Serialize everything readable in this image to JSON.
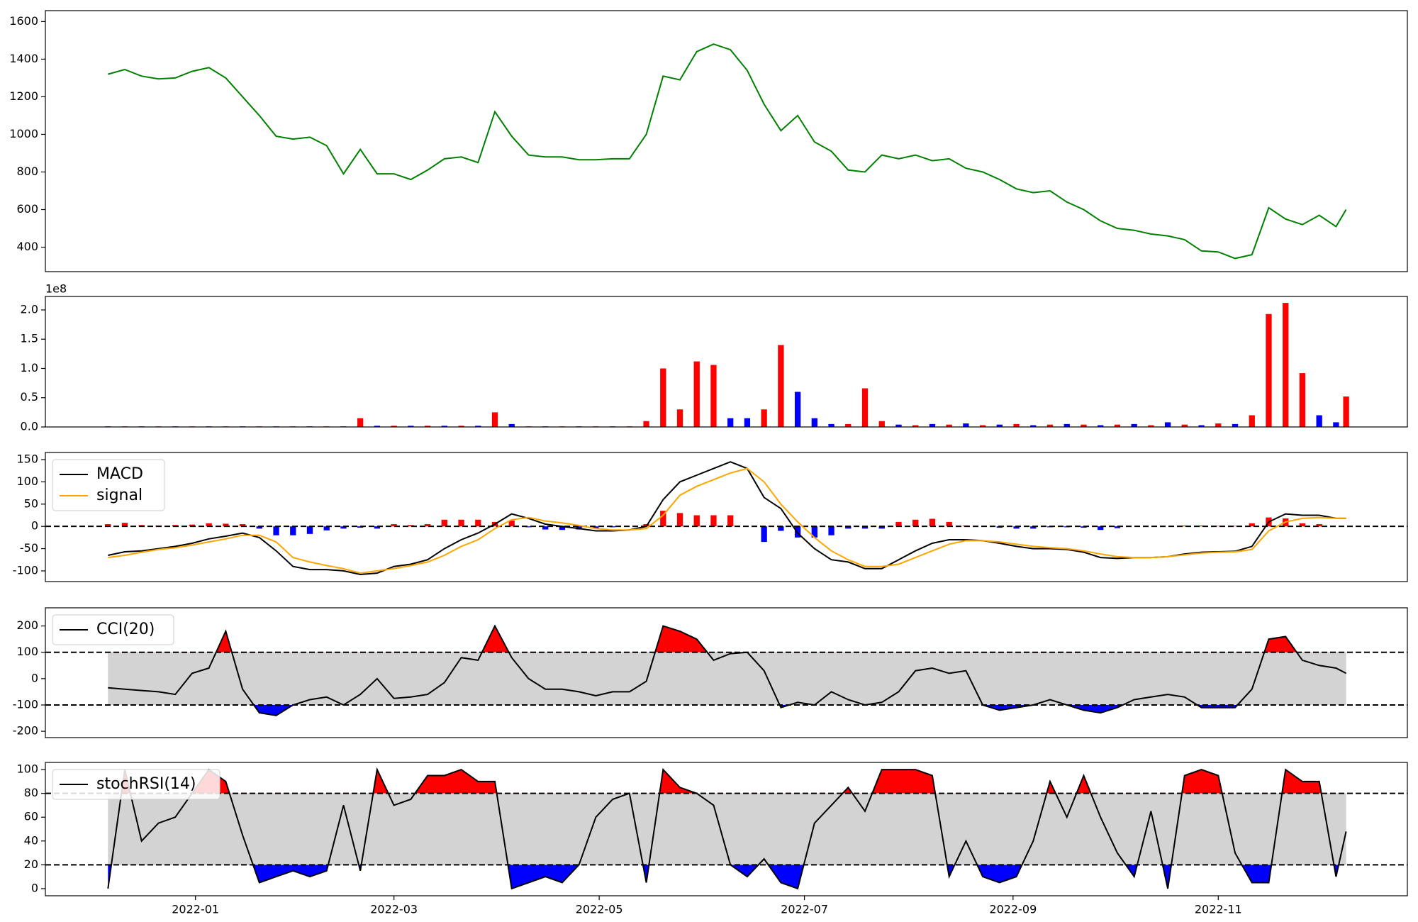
{
  "chart_data": [
    {
      "type": "line",
      "color": "#008000",
      "x": [
        -26,
        -21,
        -16,
        -11,
        -6,
        -1,
        4,
        9,
        14,
        19,
        24,
        29,
        34,
        39,
        44,
        49,
        54,
        59,
        64,
        69,
        74,
        79,
        84,
        89,
        94,
        99,
        104,
        109,
        114,
        119,
        124,
        129,
        134,
        139,
        144,
        149,
        154,
        159,
        164,
        169,
        174,
        179,
        184,
        189,
        194,
        199,
        204,
        209,
        214,
        219,
        224,
        229,
        234,
        239,
        244,
        249,
        254,
        259,
        264,
        269,
        274,
        279,
        284,
        289,
        294,
        299,
        304,
        309,
        314,
        319,
        324,
        329,
        334,
        339,
        342
      ],
      "values": [
        1320,
        1345,
        1310,
        1295,
        1300,
        1335,
        1355,
        1300,
        1200,
        1100,
        990,
        975,
        985,
        940,
        790,
        920,
        790,
        790,
        760,
        810,
        870,
        880,
        850,
        1120,
        990,
        890,
        880,
        880,
        865,
        865,
        870,
        870,
        1000,
        1310,
        1290,
        1440,
        1480,
        1450,
        1340,
        1160,
        1020,
        1100,
        960,
        910,
        810,
        800,
        890,
        870,
        890,
        860,
        870,
        820,
        800,
        760,
        710,
        690,
        700,
        640,
        600,
        540,
        500,
        490,
        470,
        460,
        440,
        380,
        375,
        340,
        360,
        610,
        550,
        520,
        570,
        510,
        600
      ],
      "xlim": [
        -44.6,
        360.2
      ],
      "ylim": [
        270,
        1658
      ],
      "yticks": [
        400,
        600,
        800,
        1000,
        1200,
        1400,
        1600
      ]
    },
    {
      "type": "bar",
      "y_offset_label": "1e8",
      "x": [
        -26,
        -21,
        -16,
        -11,
        -6,
        -1,
        4,
        9,
        14,
        19,
        24,
        29,
        34,
        39,
        44,
        49,
        54,
        59,
        64,
        69,
        74,
        79,
        84,
        89,
        94,
        99,
        104,
        109,
        114,
        119,
        124,
        129,
        134,
        139,
        144,
        149,
        154,
        159,
        164,
        169,
        174,
        179,
        184,
        189,
        194,
        199,
        204,
        209,
        214,
        219,
        224,
        229,
        234,
        239,
        244,
        249,
        254,
        259,
        264,
        269,
        274,
        279,
        284,
        289,
        294,
        299,
        304,
        309,
        314,
        319,
        324,
        329,
        334,
        339,
        342
      ],
      "values": [
        0.01,
        0.01,
        0.01,
        0.01,
        0.01,
        0.01,
        0.01,
        0.01,
        0.01,
        0.01,
        0.01,
        0.01,
        0.01,
        0.01,
        0.01,
        0.15,
        0.02,
        0.02,
        0.02,
        0.02,
        0.02,
        0.02,
        0.02,
        0.25,
        0.05,
        0.01,
        0.01,
        0.01,
        0.01,
        0.01,
        0.01,
        0.01,
        0.1,
        1.0,
        0.3,
        1.12,
        1.06,
        0.15,
        0.15,
        0.3,
        1.4,
        0.6,
        0.15,
        0.05,
        0.05,
        0.66,
        0.1,
        0.04,
        0.03,
        0.05,
        0.04,
        0.06,
        0.03,
        0.04,
        0.05,
        0.03,
        0.04,
        0.05,
        0.04,
        0.03,
        0.04,
        0.05,
        0.03,
        0.08,
        0.04,
        0.03,
        0.06,
        0.05,
        0.2,
        1.93,
        2.12,
        0.92,
        0.2,
        0.08,
        0.52
      ],
      "colors": [
        "blue",
        "red",
        "blue",
        "red",
        "blue",
        "red",
        "blue",
        "red",
        "blue",
        "red",
        "blue",
        "red",
        "blue",
        "red",
        "blue",
        "red",
        "blue",
        "red",
        "blue",
        "red",
        "blue",
        "red",
        "blue",
        "red",
        "blue",
        "red",
        "blue",
        "red",
        "blue",
        "red",
        "blue",
        "red",
        "red",
        "red",
        "red",
        "red",
        "red",
        "blue",
        "blue",
        "red",
        "red",
        "blue",
        "blue",
        "blue",
        "red",
        "red",
        "red",
        "blue",
        "red",
        "blue",
        "red",
        "blue",
        "red",
        "blue",
        "red",
        "blue",
        "red",
        "blue",
        "red",
        "blue",
        "red",
        "blue",
        "red",
        "blue",
        "red",
        "blue",
        "red",
        "blue",
        "red",
        "red",
        "red",
        "red",
        "blue",
        "blue",
        "red"
      ],
      "xlim": [
        -44.6,
        360.2
      ],
      "ylim": [
        0,
        2.23
      ],
      "yticks": [
        {
          "value": 0,
          "label": "0.0"
        },
        {
          "value": 0.5,
          "label": "0.5"
        },
        {
          "value": 1,
          "label": "1.0"
        },
        {
          "value": 1.5,
          "label": "1.5"
        },
        {
          "value": 2,
          "label": "2.0"
        }
      ]
    },
    {
      "type": "macd",
      "legend": "upper left",
      "hline": 0,
      "pos_color": "#ff0000",
      "neg_color": "#0000ff",
      "x": [
        -26,
        -21,
        -16,
        -11,
        -6,
        -1,
        4,
        9,
        14,
        19,
        24,
        29,
        34,
        39,
        44,
        49,
        54,
        59,
        64,
        69,
        74,
        79,
        84,
        89,
        94,
        99,
        104,
        109,
        114,
        119,
        124,
        129,
        134,
        139,
        144,
        149,
        154,
        159,
        164,
        169,
        174,
        179,
        184,
        189,
        194,
        199,
        204,
        209,
        214,
        219,
        224,
        229,
        234,
        239,
        244,
        249,
        254,
        259,
        264,
        269,
        274,
        279,
        284,
        289,
        294,
        299,
        304,
        309,
        314,
        319,
        324,
        329,
        334,
        339,
        342
      ],
      "series": [
        {
          "name": "MACD",
          "color": "#000000",
          "values": [
            -65,
            -57,
            -55,
            -50,
            -45,
            -38,
            -28,
            -22,
            -15,
            -25,
            -55,
            -90,
            -97,
            -97,
            -100,
            -108,
            -105,
            -90,
            -85,
            -75,
            -50,
            -30,
            -15,
            5,
            28,
            18,
            5,
            0,
            -5,
            -10,
            -10,
            -8,
            0,
            60,
            100,
            115,
            130,
            145,
            130,
            65,
            40,
            -15,
            -50,
            -75,
            -80,
            -95,
            -95,
            -75,
            -55,
            -38,
            -30,
            -30,
            -32,
            -38,
            -45,
            -50,
            -50,
            -52,
            -58,
            -70,
            -72,
            -70,
            -70,
            -68,
            -62,
            -58,
            -57,
            -56,
            -45,
            10,
            28,
            25,
            25,
            18,
            18
          ]
        },
        {
          "name": "signal",
          "color": "#ffa500",
          "values": [
            -70,
            -65,
            -58,
            -52,
            -48,
            -42,
            -35,
            -28,
            -20,
            -20,
            -35,
            -70,
            -80,
            -88,
            -95,
            -105,
            -100,
            -95,
            -88,
            -80,
            -65,
            -45,
            -30,
            -5,
            15,
            20,
            12,
            8,
            2,
            -5,
            -8,
            -8,
            -5,
            25,
            70,
            90,
            105,
            120,
            130,
            100,
            50,
            10,
            -25,
            -55,
            -75,
            -90,
            -90,
            -85,
            -70,
            -55,
            -40,
            -32,
            -32,
            -35,
            -40,
            -45,
            -48,
            -50,
            -55,
            -62,
            -68,
            -70,
            -70,
            -68,
            -64,
            -60,
            -58,
            -57,
            -52,
            -10,
            10,
            18,
            20,
            18,
            18
          ]
        }
      ],
      "histogram": [
        5,
        8,
        3,
        2,
        3,
        4,
        7,
        6,
        5,
        -5,
        -20,
        -20,
        -17,
        -9,
        -5,
        -3,
        -5,
        5,
        3,
        5,
        15,
        15,
        15,
        10,
        13,
        -2,
        -7,
        -8,
        -7,
        -5,
        -2,
        0,
        5,
        35,
        30,
        25,
        25,
        25,
        0,
        -35,
        -10,
        -25,
        -25,
        -20,
        -5,
        -5,
        -5,
        10,
        15,
        17,
        10,
        2,
        0,
        -3,
        -5,
        -5,
        -2,
        -2,
        -3,
        -8,
        -4,
        0,
        0,
        0,
        2,
        2,
        1,
        1,
        7,
        20,
        18,
        7,
        5,
        0,
        0
      ],
      "xlim": [
        -44.6,
        360.2
      ],
      "ylim": [
        -124,
        166
      ],
      "yticks": [
        -100,
        -50,
        0,
        50,
        100,
        150
      ]
    },
    {
      "type": "oscillator",
      "legend": "upper left",
      "bands": [
        -100,
        100
      ],
      "band_color": "#d3d3d3",
      "upper_color": "#ff0000",
      "lower_color": "#0000ff",
      "x": [
        -26,
        -21,
        -16,
        -11,
        -6,
        -1,
        4,
        9,
        14,
        19,
        24,
        29,
        34,
        39,
        44,
        49,
        54,
        59,
        64,
        69,
        74,
        79,
        84,
        89,
        94,
        99,
        104,
        109,
        114,
        119,
        124,
        129,
        134,
        139,
        144,
        149,
        154,
        159,
        164,
        169,
        174,
        179,
        184,
        189,
        194,
        199,
        204,
        209,
        214,
        219,
        224,
        229,
        234,
        239,
        244,
        249,
        254,
        259,
        264,
        269,
        274,
        279,
        284,
        289,
        294,
        299,
        304,
        309,
        314,
        319,
        324,
        329,
        334,
        339,
        342
      ],
      "series": [
        {
          "name": "CCI(20)",
          "color": "#000000",
          "values": [
            -35,
            -40,
            -45,
            -50,
            -60,
            20,
            40,
            180,
            -40,
            -130,
            -140,
            -100,
            -80,
            -70,
            -100,
            -60,
            0,
            -75,
            -70,
            -60,
            -15,
            80,
            70,
            200,
            80,
            0,
            -40,
            -40,
            -50,
            -65,
            -50,
            -50,
            -10,
            200,
            180,
            150,
            70,
            95,
            100,
            30,
            -110,
            -90,
            -100,
            -50,
            -80,
            -100,
            -90,
            -50,
            30,
            40,
            20,
            30,
            -100,
            -120,
            -110,
            -100,
            -80,
            -100,
            -120,
            -130,
            -110,
            -80,
            -70,
            -60,
            -70,
            -110,
            -110,
            -110,
            -40,
            150,
            160,
            70,
            50,
            40,
            20
          ]
        }
      ],
      "xlim": [
        -44.6,
        360.2
      ],
      "ylim": [
        -224,
        269
      ],
      "yticks": [
        -200,
        -100,
        0,
        100,
        200
      ]
    },
    {
      "type": "oscillator",
      "legend": "upper left",
      "bands": [
        20,
        80
      ],
      "band_color": "#d3d3d3",
      "upper_color": "#ff0000",
      "lower_color": "#0000ff",
      "x": [
        -26,
        -21,
        -16,
        -11,
        -6,
        -1,
        4,
        9,
        14,
        19,
        24,
        29,
        34,
        39,
        44,
        49,
        54,
        59,
        64,
        69,
        74,
        79,
        84,
        89,
        94,
        99,
        104,
        109,
        114,
        119,
        124,
        129,
        134,
        139,
        144,
        149,
        154,
        159,
        164,
        169,
        174,
        179,
        184,
        189,
        194,
        199,
        204,
        209,
        214,
        219,
        224,
        229,
        234,
        239,
        244,
        249,
        254,
        259,
        264,
        269,
        274,
        279,
        284,
        289,
        294,
        299,
        304,
        309,
        314,
        319,
        324,
        329,
        334,
        339,
        342
      ],
      "series": [
        {
          "name": "stochRSI(14)",
          "color": "#000000",
          "values": [
            0,
            100,
            40,
            55,
            60,
            80,
            100,
            90,
            45,
            5,
            10,
            15,
            10,
            15,
            70,
            15,
            100,
            70,
            75,
            95,
            95,
            100,
            90,
            90,
            0,
            5,
            10,
            5,
            20,
            60,
            75,
            80,
            5,
            100,
            85,
            80,
            70,
            20,
            10,
            25,
            5,
            0,
            55,
            70,
            85,
            65,
            100,
            100,
            100,
            95,
            10,
            40,
            10,
            5,
            10,
            40,
            90,
            60,
            95,
            60,
            30,
            10,
            65,
            0,
            95,
            100,
            95,
            30,
            5,
            5,
            100,
            90,
            90,
            10,
            48
          ]
        }
      ],
      "xlim": [
        -44.6,
        360.2
      ],
      "ylim": [
        -6,
        106
      ],
      "yticks": [
        0,
        20,
        40,
        60,
        80,
        100
      ],
      "xticks": [
        {
          "value": 0,
          "label": "2022-01"
        },
        {
          "value": 59,
          "label": "2022-03"
        },
        {
          "value": 120,
          "label": "2022-05"
        },
        {
          "value": 181,
          "label": "2022-07"
        },
        {
          "value": 243,
          "label": "2022-09"
        },
        {
          "value": 304,
          "label": "2022-11"
        }
      ]
    }
  ]
}
